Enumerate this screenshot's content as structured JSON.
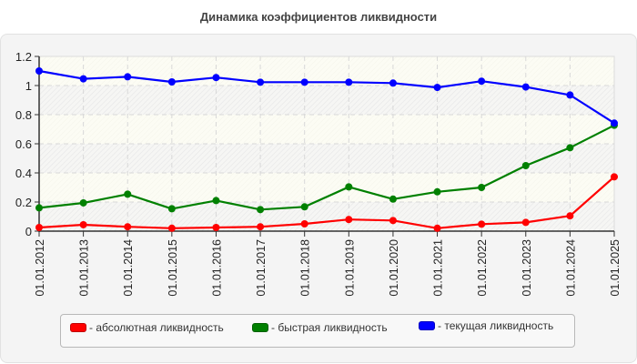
{
  "title": "Динамика коэффициентов ликвидности",
  "legend": [
    {
      "label": "- абсолютная ликвидность",
      "color": "#ff0000"
    },
    {
      "label": "- быстрая ликвидность",
      "color": "#008000"
    },
    {
      "label": "- текущая ликвидность",
      "color": "#0000ff"
    }
  ],
  "chart_data": {
    "type": "line",
    "title": "Динамика коэффициентов ликвидности",
    "xlabel": "",
    "ylabel": "",
    "ylim": [
      0,
      1.2
    ],
    "yticks": [
      "0",
      "0.2",
      "0.4",
      "0.6",
      "0.8",
      "1",
      "1.2"
    ],
    "grid": true,
    "legend_position": "bottom",
    "categories": [
      "01.01.2012",
      "01.01.2013",
      "01.01.2014",
      "01.01.2015",
      "01.01.2016",
      "01.01.2017",
      "01.01.2018",
      "01.01.2019",
      "01.01.2020",
      "01.01.2021",
      "01.01.2022",
      "01.01.2023",
      "01.01.2024",
      "01.01.2025"
    ],
    "series": [
      {
        "name": "абсолютная ликвидность",
        "color": "#ff0000",
        "values": [
          0.025,
          0.044,
          0.03,
          0.02,
          0.025,
          0.03,
          0.05,
          0.08,
          0.073,
          0.02,
          0.048,
          0.06,
          0.105,
          0.373
        ]
      },
      {
        "name": "быстрая ликвидность",
        "color": "#008000",
        "values": [
          0.16,
          0.194,
          0.254,
          0.154,
          0.21,
          0.148,
          0.167,
          0.304,
          0.22,
          0.27,
          0.3,
          0.45,
          0.573,
          0.727
        ]
      },
      {
        "name": "текущая ликвидность",
        "color": "#0000ff",
        "values": [
          1.1,
          1.046,
          1.06,
          1.025,
          1.055,
          1.023,
          1.023,
          1.023,
          1.017,
          0.987,
          1.03,
          0.99,
          0.935,
          0.742
        ]
      }
    ]
  }
}
